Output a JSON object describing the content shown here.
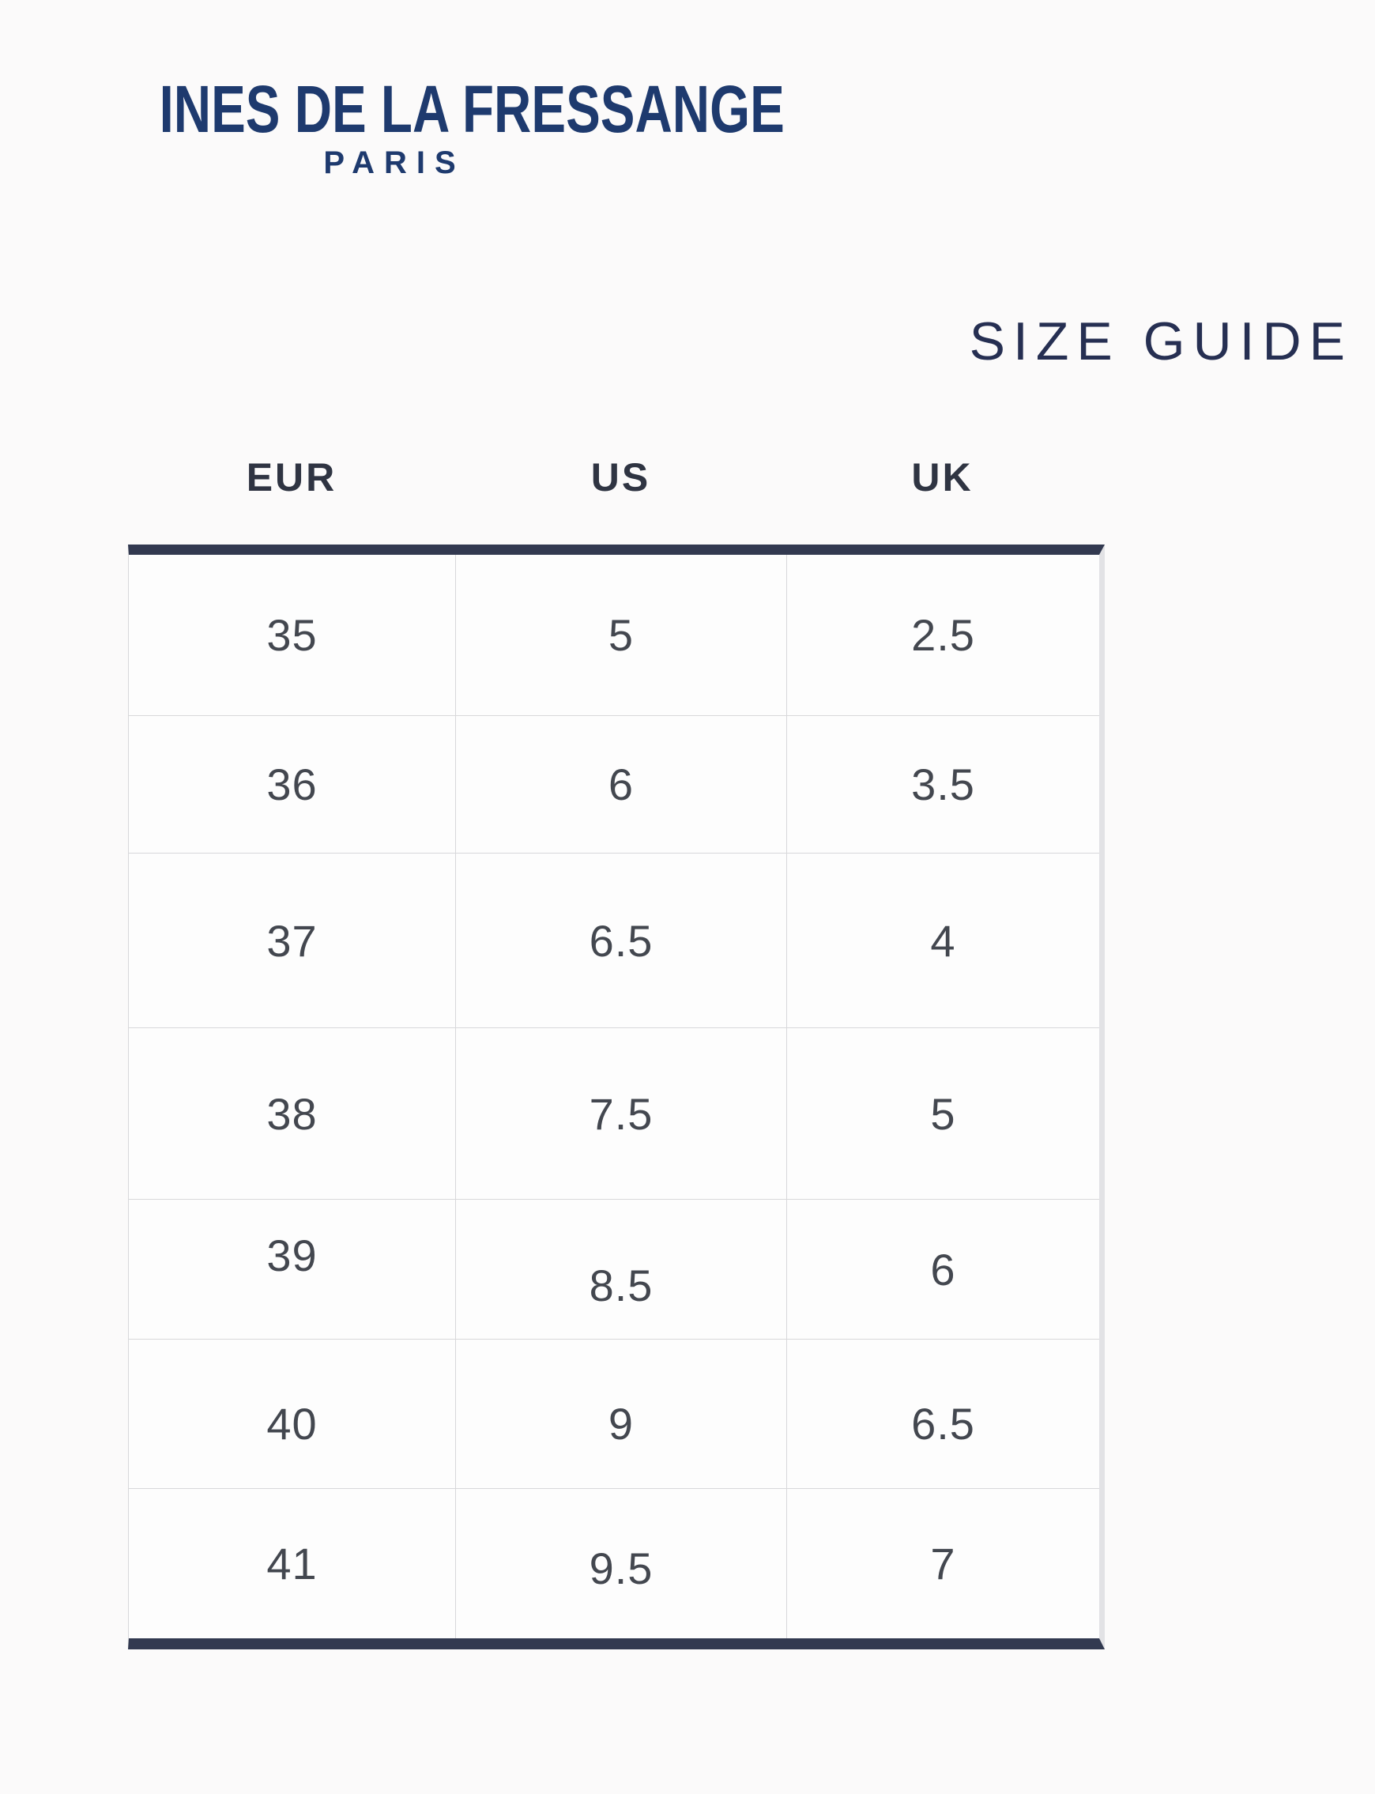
{
  "brand": {
    "name": "INES DE LA FRESSANGE",
    "city": "PARIS"
  },
  "page_title": "SIZE GUIDE",
  "size_table": {
    "columns": [
      "EUR",
      "US",
      "UK"
    ],
    "rows": [
      [
        "35",
        "5",
        "2.5"
      ],
      [
        "36",
        "6",
        "3.5"
      ],
      [
        "37",
        "6.5",
        "4"
      ],
      [
        "38",
        "7.5",
        "5"
      ],
      [
        "39",
        "8.5",
        "6"
      ],
      [
        "40",
        "9",
        "6.5"
      ],
      [
        "41",
        "9.5",
        "7"
      ]
    ]
  },
  "colors": {
    "brand_navy": "#1e3a6e",
    "title_navy": "#262f52",
    "header_text": "#2f3442",
    "cell_text": "#43474f",
    "table_accent_bar": "#323950",
    "grid_line": "#d8d8da",
    "background": "#fbfafa"
  }
}
